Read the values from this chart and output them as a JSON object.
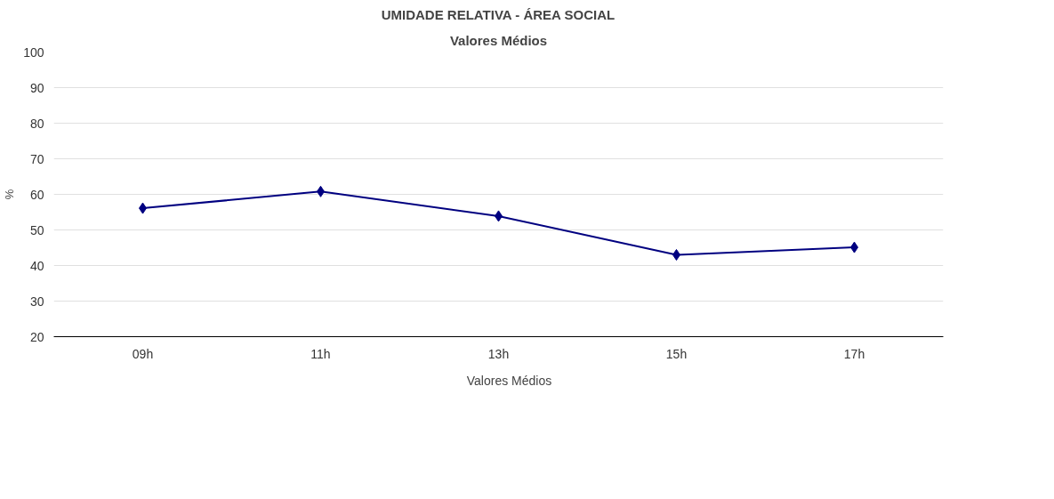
{
  "chart_data": {
    "type": "line",
    "title": "UMIDADE RELATIVA - ÁREA SOCIAL",
    "subtitle": "Valores Médios",
    "ylabel": "%",
    "categories": [
      "09h",
      "11h",
      "13h",
      "15h",
      "17h"
    ],
    "series": [
      {
        "name": "Valores Médios",
        "color": "#000080",
        "values": [
          56.1,
          60.8,
          53.9,
          43.0,
          45.1
        ]
      }
    ],
    "ylim": [
      20,
      100
    ],
    "yticks": [
      20,
      30,
      40,
      50,
      60,
      70,
      80,
      90,
      100
    ],
    "grid": "y",
    "legend": "bottom",
    "marker": "diamond",
    "line_style": "solid"
  }
}
